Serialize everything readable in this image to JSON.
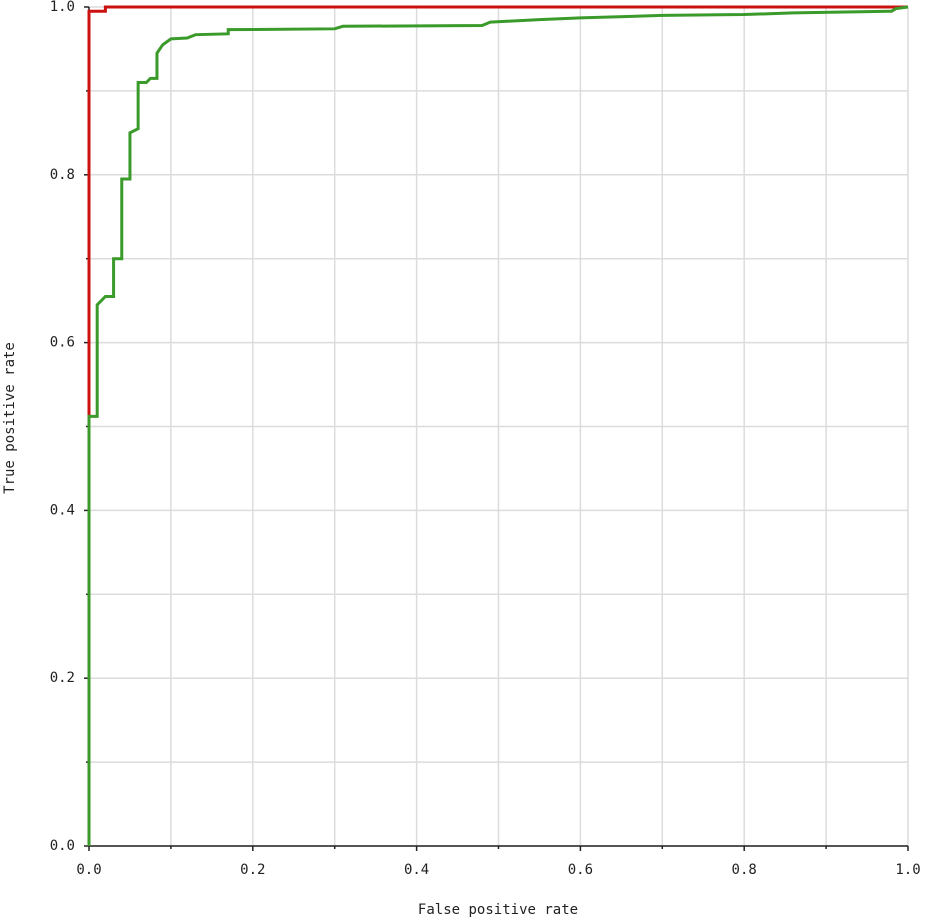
{
  "chart_data": {
    "type": "line",
    "x_label": "False positive rate",
    "y_label": "True positive rate",
    "xlim": [
      0,
      1
    ],
    "ylim": [
      0,
      1
    ],
    "xticks": [
      {
        "value": 0,
        "label": "0.0"
      },
      0.2,
      0.4,
      0.6,
      0.8,
      {
        "value": 1,
        "label": "1.0"
      }
    ],
    "yticks": [
      {
        "value": 0,
        "label": "0.0"
      },
      0.2,
      0.4,
      0.6,
      0.8,
      {
        "value": 1,
        "label": "1.0"
      }
    ],
    "minor_xticks": [
      0.1,
      0.3,
      0.5,
      0.7,
      0.9
    ],
    "minor_yticks": [
      0.1,
      0.3,
      0.5,
      0.7,
      0.9
    ],
    "grid": true,
    "series": [
      {
        "color": "#cc1111",
        "x": [
          0,
          0,
          0.02,
          0.02,
          1
        ],
        "values": [
          0,
          0.995,
          0.995,
          1,
          1
        ]
      },
      {
        "color": "#3a9a2a",
        "x": [
          0,
          0,
          0.01,
          0.01,
          0.02,
          0.03,
          0.03,
          0.04,
          0.04,
          0.05,
          0.05,
          0.06,
          0.06,
          0.07,
          0.075,
          0.083,
          0.083,
          0.09,
          0.1,
          0.12,
          0.13,
          0.17,
          0.17,
          0.3,
          0.31,
          0.48,
          0.49,
          0.55,
          0.6,
          0.7,
          0.8,
          0.86,
          0.98,
          0.985,
          1
        ],
        "values": [
          0,
          0.512,
          0.512,
          0.645,
          0.655,
          0.655,
          0.7,
          0.7,
          0.795,
          0.795,
          0.85,
          0.855,
          0.91,
          0.91,
          0.915,
          0.915,
          0.945,
          0.955,
          0.962,
          0.963,
          0.967,
          0.968,
          0.973,
          0.974,
          0.977,
          0.978,
          0.982,
          0.985,
          0.987,
          0.99,
          0.991,
          0.993,
          0.995,
          0.998,
          1
        ]
      }
    ]
  }
}
